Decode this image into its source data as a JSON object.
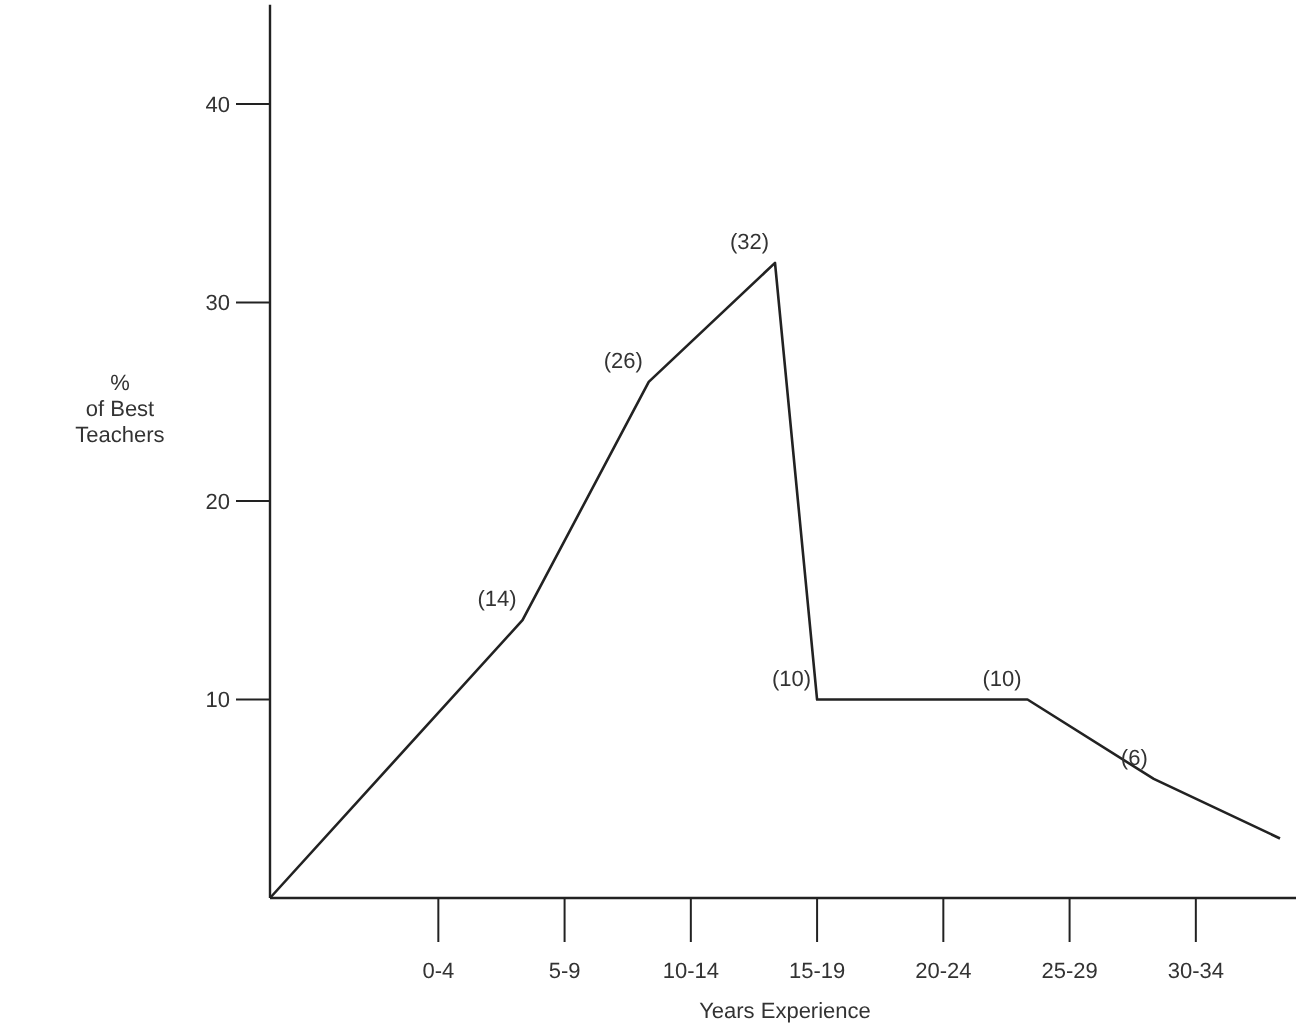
{
  "chart_data": {
    "type": "line",
    "xlabel": "Years Experience",
    "ylabel": "%\nof Best\nTeachers",
    "categories": [
      null,
      null,
      null,
      null,
      "0-4",
      null,
      null,
      "5-9",
      null,
      null,
      "10-14",
      null,
      null,
      "15-19",
      null,
      null,
      "20-24",
      null,
      null,
      "25-29",
      null,
      null,
      "30-34",
      null,
      null
    ],
    "values": [
      0,
      null,
      null,
      null,
      null,
      null,
      14,
      null,
      null,
      26,
      null,
      null,
      32,
      10,
      10,
      10,
      10,
      10,
      10,
      null,
      null,
      6,
      null,
      null,
      3
    ],
    "value_labels": [
      null,
      null,
      null,
      null,
      null,
      null,
      "(14)",
      null,
      null,
      "(26)",
      null,
      null,
      "(32)",
      "(10)",
      null,
      null,
      null,
      null,
      "(10)",
      null,
      null,
      "(6)",
      null,
      null,
      null
    ],
    "color": "#222222",
    "marker": "none",
    "line_style": "solid",
    "grid": false,
    "ylim": [
      0,
      45
    ],
    "yticks": [
      10,
      20,
      30,
      40
    ]
  }
}
